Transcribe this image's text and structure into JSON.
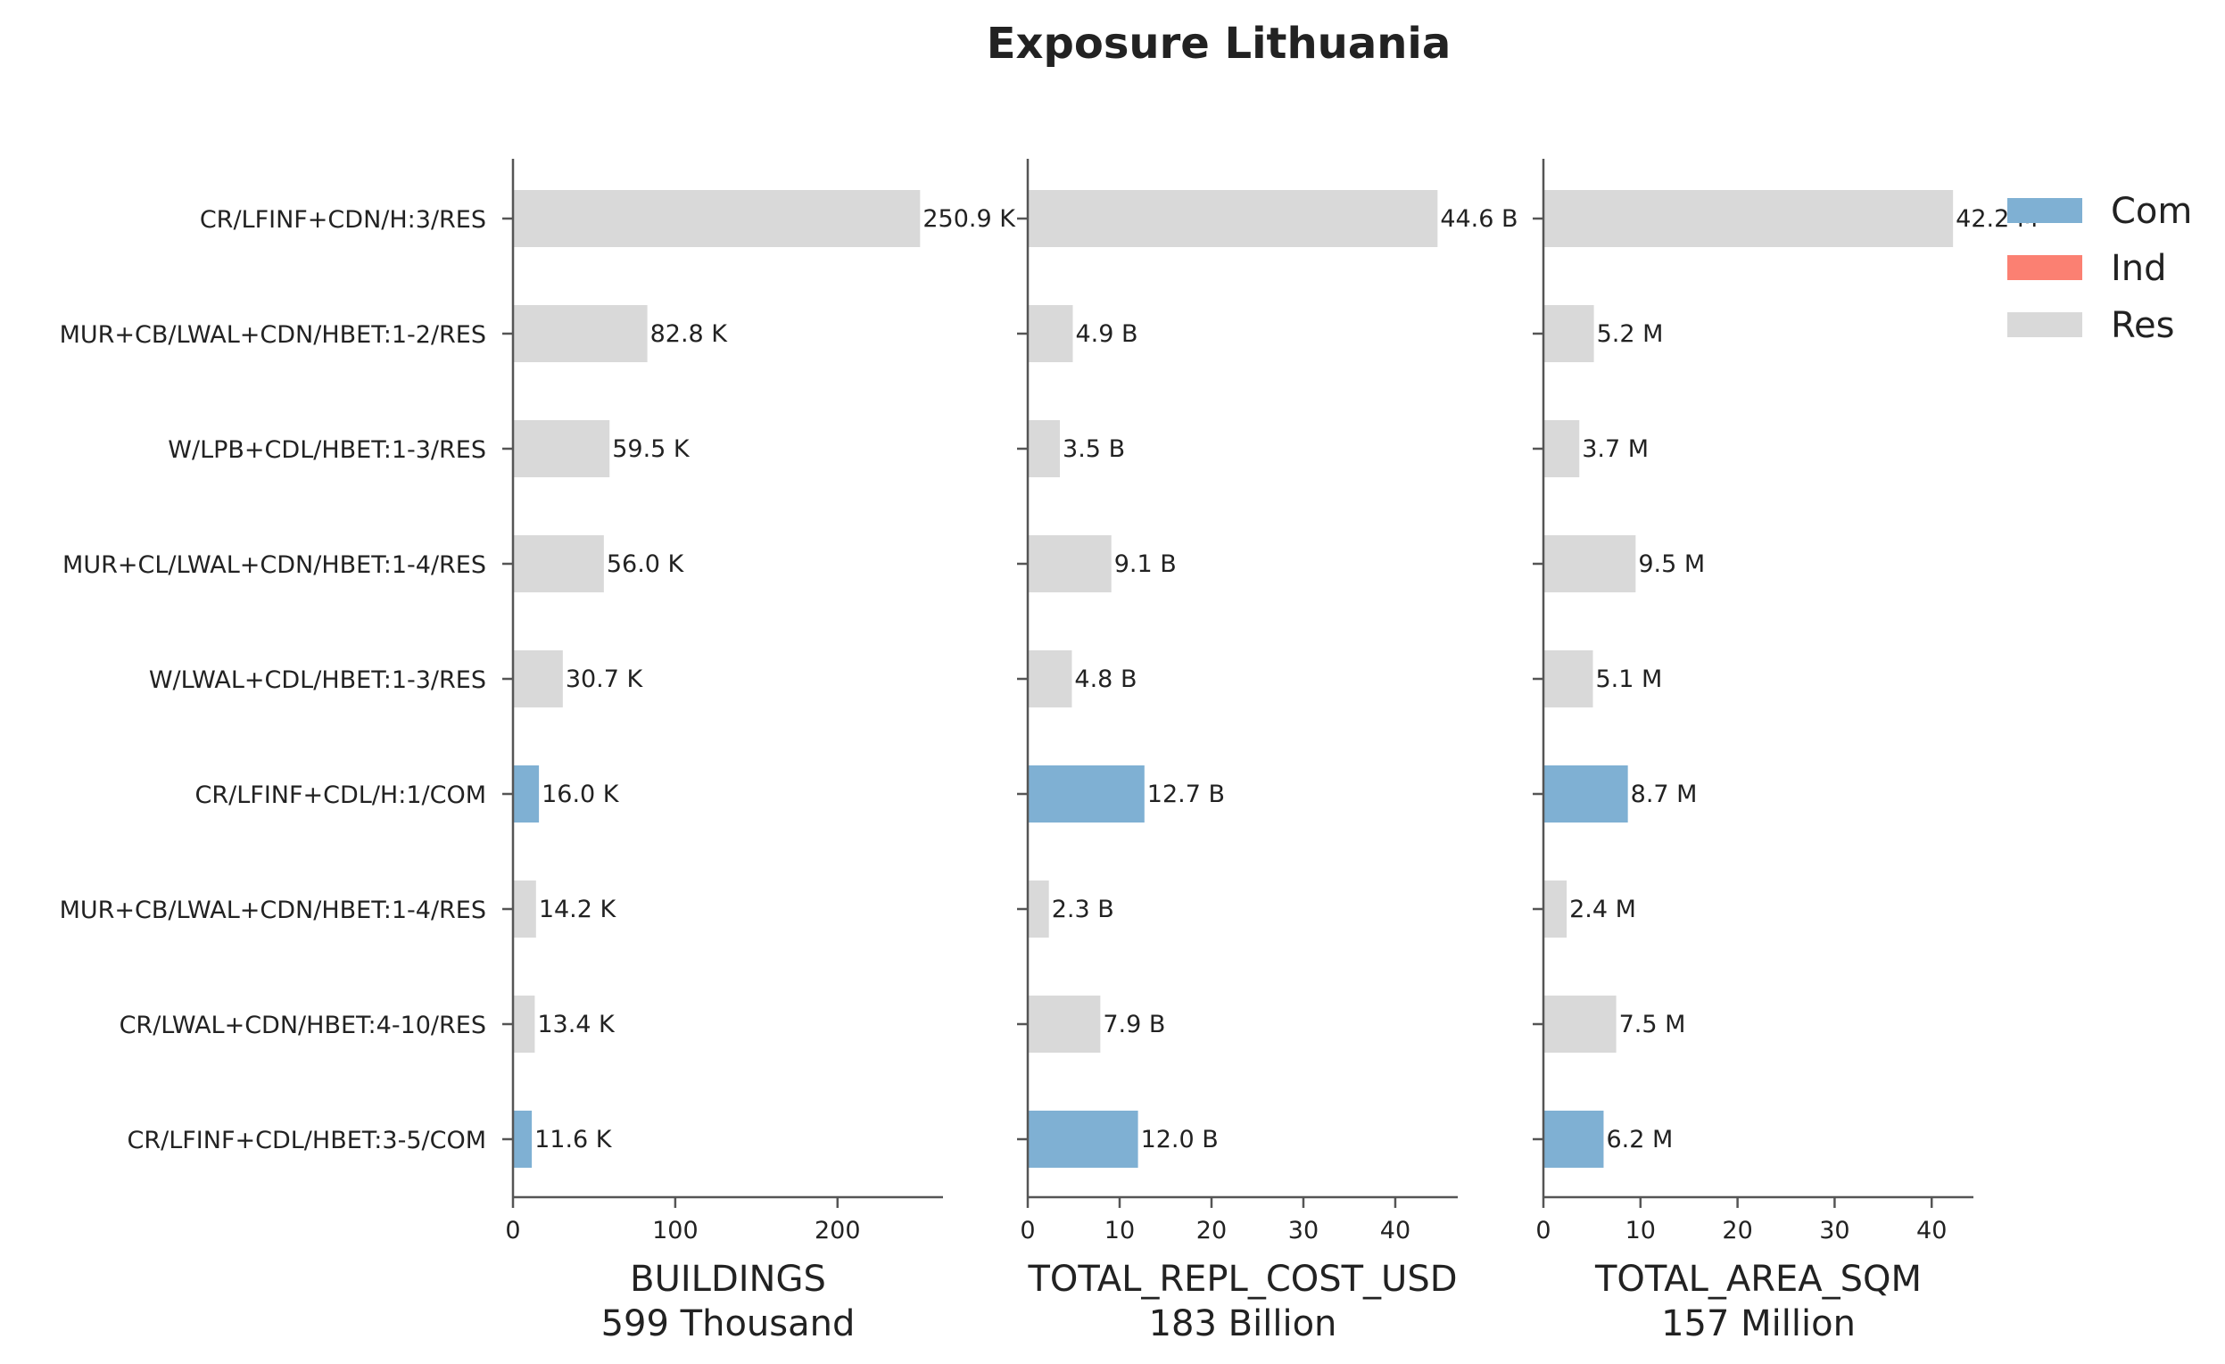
{
  "title": "Exposure Lithuania",
  "colors": {
    "Com": "#7fb0d3",
    "Ind": "#fb8072",
    "Res": "#d9d9d9"
  },
  "legend": {
    "placement": "top-right",
    "entries": [
      "Com",
      "Ind",
      "Res"
    ]
  },
  "chart_data": {
    "type": "bar",
    "orientation": "horizontal",
    "categories": [
      "CR/LFINF+CDN/H:3/RES",
      "MUR+CB/LWAL+CDN/HBET:1-2/RES",
      "W/LPB+CDL/HBET:1-3/RES",
      "MUR+CL/LWAL+CDN/HBET:1-4/RES",
      "W/LWAL+CDL/HBET:1-3/RES",
      "CR/LFINF+CDL/H:1/COM",
      "MUR+CB/LWAL+CDN/HBET:1-4/RES",
      "CR/LWAL+CDN/HBET:4-10/RES",
      "CR/LFINF+CDL/HBET:3-5/COM"
    ],
    "occupancy": [
      "Res",
      "Res",
      "Res",
      "Res",
      "Res",
      "Com",
      "Res",
      "Res",
      "Com"
    ],
    "panels": [
      {
        "xlabel": "BUILDINGS",
        "total": "599 Thousand",
        "xlim": [
          0,
          265
        ],
        "xticks": [
          0,
          100,
          200
        ],
        "values": [
          250.9,
          82.8,
          59.5,
          56.0,
          30.7,
          16.0,
          14.2,
          13.4,
          11.6
        ],
        "labels": [
          "250.9 K",
          "82.8 K",
          "59.5 K",
          "56.0 K",
          "30.7 K",
          "16.0 K",
          "14.2 K",
          "13.4 K",
          "11.6 K"
        ]
      },
      {
        "xlabel": "TOTAL_REPL_COST_USD",
        "total": "183 Billion",
        "xlim": [
          0,
          46.8
        ],
        "xticks": [
          0,
          10,
          20,
          30,
          40
        ],
        "values": [
          44.6,
          4.9,
          3.5,
          9.1,
          4.8,
          12.7,
          2.3,
          7.9,
          12.0
        ],
        "labels": [
          "44.6 B",
          "4.9 B",
          "3.5 B",
          "9.1 B",
          "4.8 B",
          "12.7 B",
          "2.3 B",
          "7.9 B",
          "12.0 B"
        ]
      },
      {
        "xlabel": "TOTAL_AREA_SQM",
        "total": "157 Million",
        "xlim": [
          0,
          44.3
        ],
        "xticks": [
          0,
          10,
          20,
          30,
          40
        ],
        "values": [
          42.2,
          5.2,
          3.7,
          9.5,
          5.1,
          8.7,
          2.4,
          7.5,
          6.2
        ],
        "labels": [
          "42.2 M",
          "5.2 M",
          "3.7 M",
          "9.5 M",
          "5.1 M",
          "8.7 M",
          "2.4 M",
          "7.5 M",
          "6.2 M"
        ]
      }
    ]
  }
}
